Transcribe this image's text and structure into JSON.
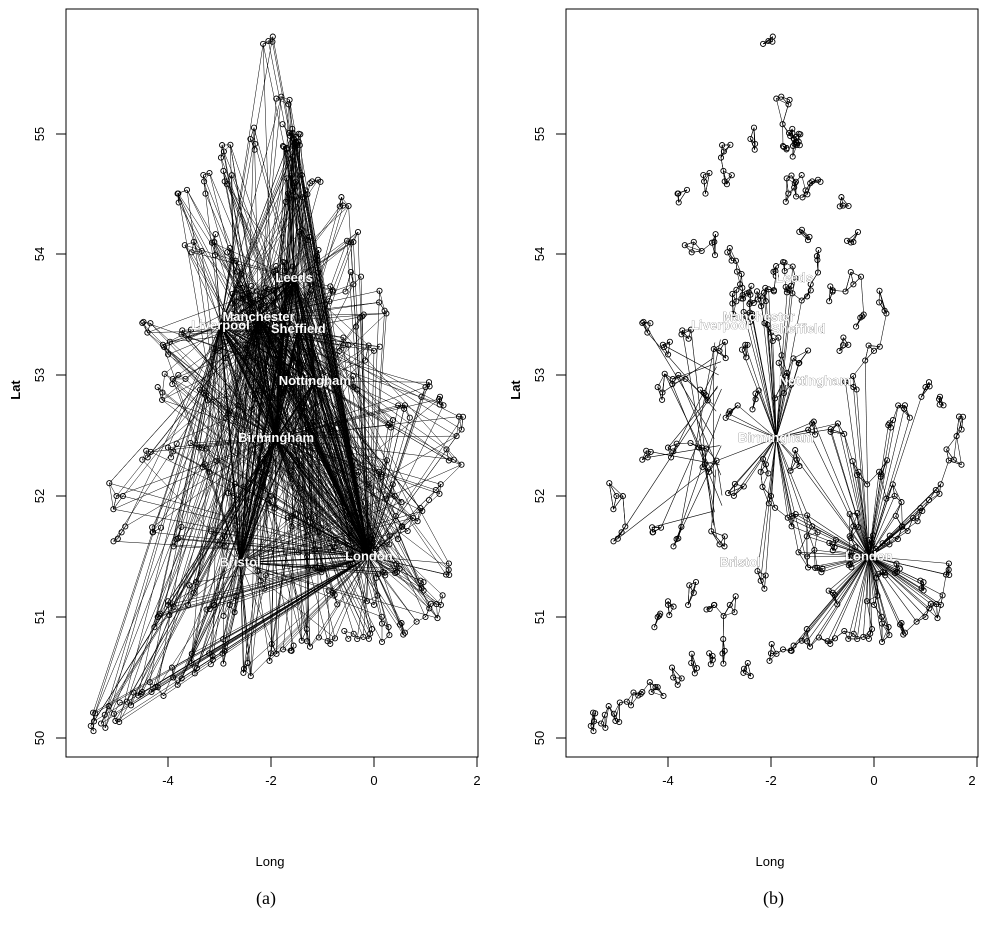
{
  "chart_data": [
    {
      "type": "scatter",
      "panel": "(a)",
      "xlabel": "Long",
      "ylabel": "Lat",
      "xlim": [
        -5.9,
        2.1
      ],
      "ylim": [
        49.9,
        56.0
      ],
      "xticks": [
        -4,
        -2,
        0,
        2
      ],
      "yticks": [
        50,
        51,
        52,
        53,
        54,
        55
      ],
      "hubs": [
        {
          "name": "London",
          "x": -0.1,
          "y": 51.5
        },
        {
          "name": "Birmingham",
          "x": -1.9,
          "y": 52.48
        },
        {
          "name": "Bristol",
          "x": -2.6,
          "y": 51.45
        },
        {
          "name": "Manchester",
          "x": -2.24,
          "y": 53.48
        },
        {
          "name": "Liverpool",
          "x": -2.98,
          "y": 53.41
        },
        {
          "name": "Leeds",
          "x": -1.55,
          "y": 53.8
        },
        {
          "name": "Sheffield",
          "x": -1.47,
          "y": 53.38
        },
        {
          "name": "Nottingham",
          "x": -1.15,
          "y": 52.95
        }
      ],
      "nodes": [
        [
          -5.5,
          50.1
        ],
        [
          -5.3,
          50.12
        ],
        [
          -5.05,
          50.2
        ],
        [
          -4.8,
          50.3
        ],
        [
          -4.5,
          50.38
        ],
        [
          -4.2,
          50.42
        ],
        [
          -3.9,
          50.5
        ],
        [
          -3.55,
          50.62
        ],
        [
          -3.2,
          50.7
        ],
        [
          -2.9,
          50.72
        ],
        [
          -2.45,
          50.62
        ],
        [
          -2.0,
          50.7
        ],
        [
          -1.6,
          50.72
        ],
        [
          -1.3,
          50.8
        ],
        [
          -0.9,
          50.8
        ],
        [
          -0.5,
          50.82
        ],
        [
          -0.1,
          50.82
        ],
        [
          0.3,
          50.85
        ],
        [
          0.6,
          50.87
        ],
        [
          1.0,
          51.0
        ],
        [
          1.3,
          51.1
        ],
        [
          1.4,
          51.35
        ],
        [
          0.9,
          51.3
        ],
        [
          0.5,
          51.4
        ],
        [
          0.3,
          51.6
        ],
        [
          0.55,
          51.75
        ],
        [
          0.9,
          51.9
        ],
        [
          1.2,
          52.05
        ],
        [
          1.55,
          52.3
        ],
        [
          1.7,
          52.55
        ],
        [
          1.35,
          52.75
        ],
        [
          1.0,
          52.9
        ],
        [
          0.6,
          52.75
        ],
        [
          0.3,
          52.6
        ],
        [
          0.1,
          52.2
        ],
        [
          0.4,
          52.0
        ],
        [
          -0.3,
          52.2
        ],
        [
          -0.4,
          51.75
        ],
        [
          -0.8,
          51.55
        ],
        [
          -1.3,
          51.5
        ],
        [
          -1.6,
          51.75
        ],
        [
          -1.2,
          51.75
        ],
        [
          -2.2,
          51.3
        ],
        [
          -2.8,
          51.1
        ],
        [
          -3.1,
          51.1
        ],
        [
          -3.5,
          51.2
        ],
        [
          -4.0,
          51.1
        ],
        [
          -4.2,
          51.0
        ],
        [
          -3.0,
          51.6
        ],
        [
          -3.8,
          51.65
        ],
        [
          -4.3,
          51.7
        ],
        [
          -4.9,
          51.7
        ],
        [
          -5.0,
          52.0
        ],
        [
          -4.5,
          52.3
        ],
        [
          -4.0,
          52.4
        ],
        [
          -3.4,
          52.4
        ],
        [
          -2.7,
          52.1
        ],
        [
          -2.2,
          52.2
        ],
        [
          -2.0,
          52.0
        ],
        [
          -1.5,
          52.3
        ],
        [
          -1.2,
          52.6
        ],
        [
          -0.7,
          52.6
        ],
        [
          -0.4,
          52.9
        ],
        [
          0.0,
          53.2
        ],
        [
          -0.5,
          53.25
        ],
        [
          -0.2,
          53.5
        ],
        [
          0.1,
          53.6
        ],
        [
          -0.4,
          53.75
        ],
        [
          -0.8,
          53.7
        ],
        [
          -1.1,
          53.95
        ],
        [
          -0.4,
          54.1
        ],
        [
          -0.6,
          54.4
        ],
        [
          -1.2,
          54.6
        ],
        [
          -1.55,
          54.55
        ],
        [
          -1.5,
          54.9
        ],
        [
          -1.65,
          55.0
        ],
        [
          -1.8,
          55.3
        ],
        [
          -2.05,
          55.76
        ],
        [
          -2.4,
          54.95
        ],
        [
          -2.95,
          54.9
        ],
        [
          -3.3,
          54.6
        ],
        [
          -3.5,
          54.1
        ],
        [
          -3.1,
          54.1
        ],
        [
          -2.8,
          54.05
        ],
        [
          -2.6,
          53.75
        ],
        [
          -2.4,
          53.6
        ],
        [
          -2.0,
          53.35
        ],
        [
          -2.5,
          53.25
        ],
        [
          -3.0,
          53.2
        ],
        [
          -3.6,
          53.3
        ],
        [
          -4.1,
          53.25
        ],
        [
          -4.4,
          53.35
        ],
        [
          -4.2,
          52.9
        ],
        [
          -3.8,
          53.0
        ],
        [
          -3.3,
          52.85
        ],
        [
          -2.8,
          52.7
        ],
        [
          -2.3,
          52.8
        ],
        [
          -1.75,
          52.85
        ],
        [
          -1.45,
          53.1
        ],
        [
          -1.85,
          53.1
        ],
        [
          -1.9,
          53.9
        ],
        [
          -1.3,
          53.65
        ],
        [
          -2.9,
          54.6
        ],
        [
          -3.8,
          54.5
        ],
        [
          -3.2,
          52.2
        ],
        [
          -0.8,
          51.2
        ],
        [
          -1.0,
          51.4
        ],
        [
          0.0,
          51.1
        ],
        [
          -2.2,
          53.65
        ],
        [
          -1.4,
          54.2
        ]
      ],
      "edge_style": "hub-and-spoke, dense long-distance links"
    },
    {
      "type": "scatter",
      "panel": "(b)",
      "xlabel": "Long",
      "ylabel": "Lat",
      "xlim": [
        -5.9,
        2.1
      ],
      "ylim": [
        49.9,
        56.0
      ],
      "xticks": [
        -4,
        -2,
        0,
        2
      ],
      "yticks": [
        50,
        51,
        52,
        53,
        54,
        55
      ],
      "hubs": [
        {
          "name": "London",
          "x": -0.1,
          "y": 51.5
        },
        {
          "name": "Birmingham",
          "x": -1.9,
          "y": 52.48
        },
        {
          "name": "Bristol",
          "x": -2.6,
          "y": 51.45
        },
        {
          "name": "Manchester",
          "x": -2.24,
          "y": 53.48
        },
        {
          "name": "Liverpool",
          "x": -2.98,
          "y": 53.41
        },
        {
          "name": "Leeds",
          "x": -1.55,
          "y": 53.8
        },
        {
          "name": "Sheffield",
          "x": -1.47,
          "y": 53.38
        },
        {
          "name": "Nottingham",
          "x": -1.15,
          "y": 52.95
        }
      ],
      "edge_style": "mostly local links, London and Birmingham stars"
    }
  ],
  "captions": {
    "a": "(a)",
    "b": "(b)"
  },
  "labels": {
    "a": {
      "xlabel": "Long",
      "ylabel": "Lat",
      "xticks": [
        "-4",
        "-2",
        "0",
        "2"
      ],
      "yticks": [
        "50",
        "51",
        "52",
        "53",
        "54",
        "55"
      ],
      "cities": [
        "London",
        "Birmingham",
        "Bristol",
        "Manchester",
        "Liverpool",
        "Leeds",
        "Sheffield",
        "Nottingham"
      ]
    },
    "b": {
      "xlabel": "Long",
      "ylabel": "Lat",
      "xticks": [
        "-4",
        "-2",
        "0",
        "2"
      ],
      "yticks": [
        "50",
        "51",
        "52",
        "53",
        "54",
        "55"
      ],
      "cities": [
        "London",
        "Birmingham",
        "Bristol",
        "Manchester",
        "Liverpool",
        "Leeds",
        "Sheffield",
        "Nottingham"
      ]
    }
  }
}
